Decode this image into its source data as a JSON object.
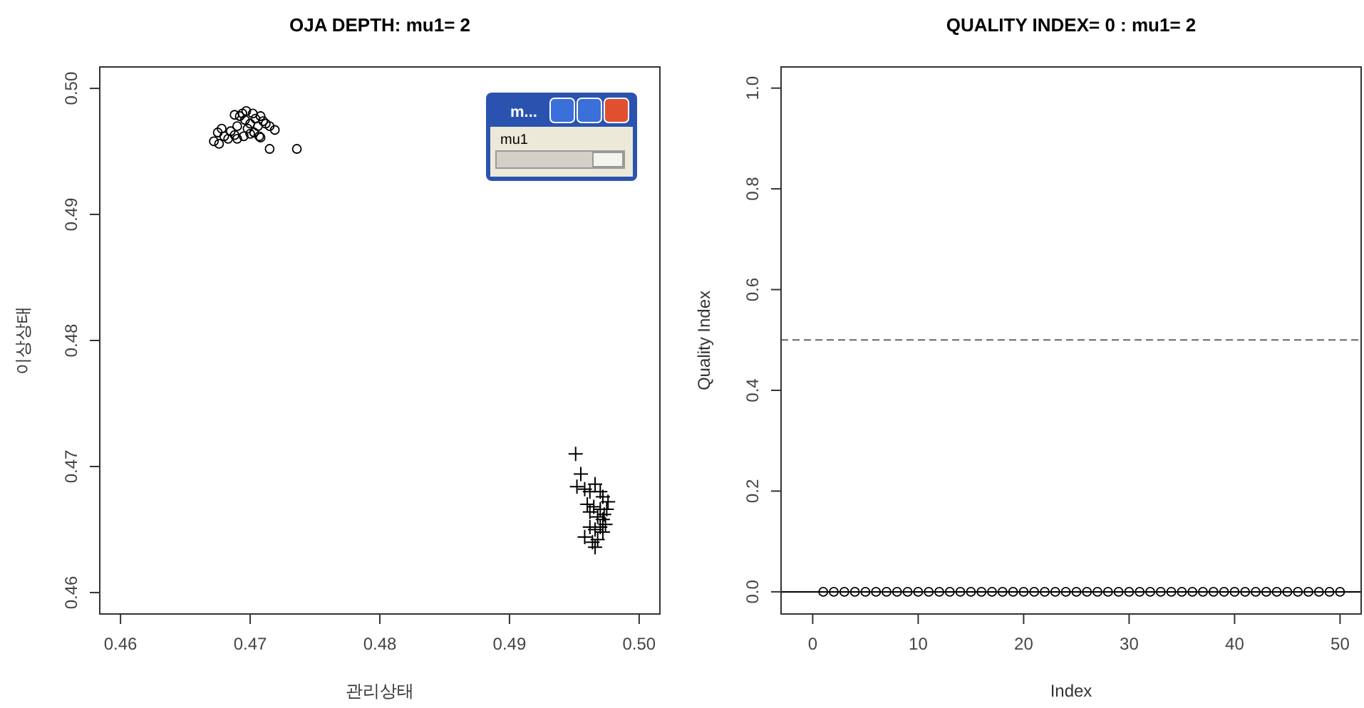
{
  "chart_data": [
    {
      "type": "scatter",
      "title": "OJA DEPTH: mu1= 2",
      "xlabel": "관리상태",
      "ylabel": "이상상태",
      "xlim": [
        0.4584,
        0.5016
      ],
      "ylim": [
        0.4583,
        0.5017
      ],
      "xticks": [
        0.46,
        0.47,
        0.48,
        0.49,
        {
          "value": 0.5,
          "label": "0.50"
        }
      ],
      "yticks": [
        0.46,
        0.47,
        0.48,
        0.49,
        {
          "value": 0.5,
          "label": "0.50"
        }
      ],
      "grid": false,
      "annotations": [
        "m...",
        "mu1"
      ],
      "series": [
        {
          "color": "#000000",
          "marker": "circle",
          "x": [
            0.4672,
            0.4675,
            0.4678,
            0.468,
            0.4683,
            0.4685,
            0.4676,
            0.4688,
            0.469,
            0.4692,
            0.4694,
            0.4696,
            0.4698,
            0.47,
            0.4702,
            0.4704,
            0.4706,
            0.4708,
            0.471,
            0.4712,
            0.4715,
            0.4719,
            0.47,
            0.4695,
            0.469,
            0.4703,
            0.4707,
            0.4708,
            0.4688,
            0.4697,
            0.4715,
            0.4736
          ],
          "values": [
            0.4958,
            0.4965,
            0.4968,
            0.4962,
            0.496,
            0.4966,
            0.4956,
            0.4963,
            0.497,
            0.4978,
            0.498,
            0.4975,
            0.4968,
            0.4972,
            0.498,
            0.4976,
            0.497,
            0.4978,
            0.4974,
            0.4972,
            0.497,
            0.4967,
            0.4964,
            0.4962,
            0.496,
            0.4965,
            0.4962,
            0.4961,
            0.4979,
            0.4982,
            0.4952,
            0.4952
          ]
        },
        {
          "color": "#000000",
          "marker": "cross",
          "x": [
            0.4951,
            0.4955,
            0.4952,
            0.4958,
            0.4962,
            0.4966,
            0.497,
            0.4972,
            0.496,
            0.4965,
            0.497,
            0.4975,
            0.4968,
            0.4972,
            0.4962,
            0.4966,
            0.497,
            0.4974,
            0.4958,
            0.4964,
            0.4968,
            0.4972,
            0.4966,
            0.4973,
            0.4976,
            0.4962
          ],
          "values": [
            0.471,
            0.4694,
            0.4684,
            0.4682,
            0.468,
            0.4686,
            0.468,
            0.4676,
            0.467,
            0.4668,
            0.4666,
            0.4666,
            0.466,
            0.4658,
            0.4652,
            0.465,
            0.4652,
            0.4654,
            0.4644,
            0.464,
            0.4642,
            0.4648,
            0.4636,
            0.4662,
            0.4672,
            0.4664
          ]
        }
      ]
    },
    {
      "type": "scatter",
      "title": "QUALITY INDEX= 0 : mu1= 2",
      "xlabel": "Index",
      "ylabel": "Quality Index",
      "xlim": [
        -3,
        52
      ],
      "ylim": [
        -0.044,
        1.042
      ],
      "xticks": [
        0,
        10,
        20,
        30,
        40,
        50
      ],
      "yticks": [
        {
          "value": 0,
          "label": "0.0"
        },
        0.2,
        0.4,
        0.6,
        0.8,
        {
          "value": 1,
          "label": "1.0"
        }
      ],
      "grid": false,
      "marker": "circle",
      "ref_lines": [
        {
          "axis": "y",
          "value": 0.5,
          "color": "#666666",
          "line_style": "dashed"
        },
        {
          "axis": "y",
          "value": 0,
          "color": "#000000",
          "line_style": "solid"
        }
      ],
      "series": [
        {
          "color": "#000000",
          "x": [
            1,
            2,
            3,
            4,
            5,
            6,
            7,
            8,
            9,
            10,
            11,
            12,
            13,
            14,
            15,
            16,
            17,
            18,
            19,
            20,
            21,
            22,
            23,
            24,
            25,
            26,
            27,
            28,
            29,
            30,
            31,
            32,
            33,
            34,
            35,
            36,
            37,
            38,
            39,
            40,
            41,
            42,
            43,
            44,
            45,
            46,
            47,
            48,
            49,
            50
          ],
          "values": [
            0,
            0,
            0,
            0,
            0,
            0,
            0,
            0,
            0,
            0,
            0,
            0,
            0,
            0,
            0,
            0,
            0,
            0,
            0,
            0,
            0,
            0,
            0,
            0,
            0,
            0,
            0,
            0,
            0,
            0,
            0,
            0,
            0,
            0,
            0,
            0,
            0,
            0,
            0,
            0,
            0,
            0,
            0,
            0,
            0,
            0,
            0,
            0,
            0,
            0
          ]
        }
      ]
    }
  ]
}
